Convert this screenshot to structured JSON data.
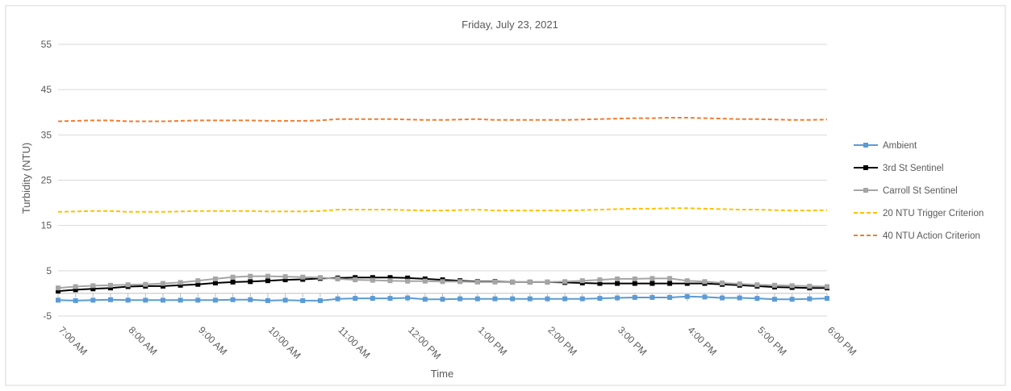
{
  "chart_data": {
    "type": "line",
    "title": "Friday, July 23, 2021",
    "xlabel": "Time",
    "ylabel": "Turbidity (NTU)",
    "ylim": [
      -5,
      55
    ],
    "yticks": [
      -5,
      5,
      15,
      25,
      35,
      45,
      55
    ],
    "xtick_labels": [
      "7:00 AM",
      "8:00 AM",
      "9:00 AM",
      "10:00 AM",
      "11:00 AM",
      "12:00 PM",
      "1:00 PM",
      "2:00 PM",
      "3:00 PM",
      "4:00 PM",
      "5:00 PM",
      "6:00 PM"
    ],
    "xrange_hours": [
      7,
      18
    ],
    "grid": "horizontal",
    "legend_position": "right",
    "x": [
      7.0,
      7.25,
      7.5,
      7.75,
      8.0,
      8.25,
      8.5,
      8.75,
      9.0,
      9.25,
      9.5,
      9.75,
      10.0,
      10.25,
      10.5,
      10.75,
      11.0,
      11.25,
      11.5,
      11.75,
      12.0,
      12.25,
      12.5,
      12.75,
      13.0,
      13.25,
      13.5,
      13.75,
      14.0,
      14.25,
      14.5,
      14.75,
      15.0,
      15.25,
      15.5,
      15.75,
      16.0,
      16.25,
      16.5,
      16.75,
      17.0,
      17.25,
      17.5,
      17.75,
      18.0
    ],
    "series": [
      {
        "name": "Ambient",
        "color": "#5b9bd5",
        "style": "solid-square-markers",
        "values": [
          -1.5,
          -1.6,
          -1.5,
          -1.4,
          -1.5,
          -1.5,
          -1.5,
          -1.5,
          -1.5,
          -1.5,
          -1.4,
          -1.4,
          -1.6,
          -1.5,
          -1.6,
          -1.6,
          -1.2,
          -1.1,
          -1.1,
          -1.1,
          -1.0,
          -1.3,
          -1.3,
          -1.2,
          -1.2,
          -1.2,
          -1.2,
          -1.2,
          -1.2,
          -1.2,
          -1.2,
          -1.1,
          -1.0,
          -0.9,
          -0.9,
          -0.9,
          -0.7,
          -0.8,
          -1.0,
          -1.0,
          -1.1,
          -1.3,
          -1.3,
          -1.2,
          -1.1
        ]
      },
      {
        "name": "3rd St Sentinel",
        "color": "#000000",
        "style": "solid-square-markers",
        "values": [
          0.5,
          0.8,
          1.0,
          1.2,
          1.5,
          1.6,
          1.6,
          1.8,
          2.0,
          2.3,
          2.5,
          2.6,
          2.8,
          3.0,
          3.1,
          3.3,
          3.4,
          3.5,
          3.5,
          3.5,
          3.4,
          3.2,
          3.0,
          2.8,
          2.6,
          2.6,
          2.5,
          2.5,
          2.5,
          2.4,
          2.3,
          2.2,
          2.2,
          2.2,
          2.2,
          2.2,
          2.2,
          2.2,
          2.0,
          1.8,
          1.6,
          1.4,
          1.3,
          1.2,
          1.2
        ]
      },
      {
        "name": "Carroll St Sentinel",
        "color": "#a5a5a5",
        "style": "solid-square-markers",
        "values": [
          1.2,
          1.5,
          1.7,
          1.8,
          1.9,
          2.0,
          2.2,
          2.4,
          2.8,
          3.2,
          3.6,
          3.8,
          3.8,
          3.7,
          3.6,
          3.5,
          3.2,
          3.0,
          2.9,
          2.8,
          2.7,
          2.7,
          2.6,
          2.6,
          2.5,
          2.5,
          2.5,
          2.5,
          2.5,
          2.6,
          2.8,
          3.0,
          3.2,
          3.2,
          3.3,
          3.3,
          2.8,
          2.6,
          2.3,
          2.1,
          1.9,
          1.8,
          1.7,
          1.6,
          1.5
        ]
      },
      {
        "name": "20 NTU Trigger Criterion",
        "color": "#ffc000",
        "style": "dashed",
        "values": [
          18.0,
          18.1,
          18.2,
          18.2,
          18.0,
          18.0,
          18.0,
          18.1,
          18.2,
          18.2,
          18.2,
          18.2,
          18.1,
          18.1,
          18.1,
          18.2,
          18.5,
          18.5,
          18.5,
          18.5,
          18.4,
          18.3,
          18.3,
          18.4,
          18.5,
          18.3,
          18.3,
          18.3,
          18.3,
          18.3,
          18.4,
          18.5,
          18.6,
          18.7,
          18.7,
          18.8,
          18.8,
          18.7,
          18.6,
          18.5,
          18.5,
          18.4,
          18.3,
          18.3,
          18.4
        ]
      },
      {
        "name": "40 NTU Action Criterion",
        "color": "#ed7d31",
        "style": "dashed",
        "values": [
          38.0,
          38.1,
          38.2,
          38.2,
          38.0,
          38.0,
          38.0,
          38.1,
          38.2,
          38.2,
          38.2,
          38.2,
          38.1,
          38.1,
          38.1,
          38.2,
          38.5,
          38.5,
          38.5,
          38.5,
          38.4,
          38.3,
          38.3,
          38.4,
          38.5,
          38.3,
          38.3,
          38.3,
          38.3,
          38.3,
          38.4,
          38.5,
          38.6,
          38.7,
          38.7,
          38.8,
          38.8,
          38.7,
          38.6,
          38.5,
          38.5,
          38.4,
          38.3,
          38.3,
          38.4
        ]
      }
    ]
  }
}
